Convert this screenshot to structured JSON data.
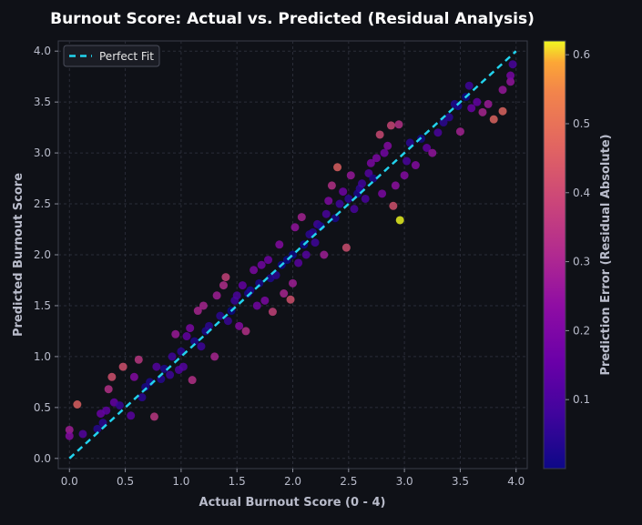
{
  "chart_data": {
    "type": "scatter",
    "title": "Burnout Score: Actual vs. Predicted (Residual Analysis)",
    "xlabel": "Actual Burnout Score (0 - 4)",
    "ylabel": "Predicted Burnout Score",
    "xlim": [
      -0.1,
      4.1
    ],
    "ylim": [
      -0.1,
      4.1
    ],
    "xticks": [
      0.0,
      0.5,
      1.0,
      1.5,
      2.0,
      2.5,
      3.0,
      3.5,
      4.0
    ],
    "yticks": [
      0.0,
      0.5,
      1.0,
      1.5,
      2.0,
      2.5,
      3.0,
      3.5,
      4.0
    ],
    "grid": true,
    "legend": {
      "position": "top-left",
      "entries": [
        "Perfect Fit"
      ]
    },
    "reference_line": {
      "label": "Perfect Fit",
      "x": [
        0,
        4
      ],
      "y": [
        0,
        4
      ],
      "style": "dashed",
      "color": "#22d3ee"
    },
    "colorbar": {
      "label": "Prediction Error (Residual Absolute)",
      "range": [
        0.0,
        0.62
      ],
      "ticks": [
        0.1,
        0.2,
        0.3,
        0.4,
        0.5,
        0.6
      ],
      "colormap": "plasma"
    },
    "points": [
      {
        "x": 0.0,
        "y": 0.28
      },
      {
        "x": 0.0,
        "y": 0.22
      },
      {
        "x": 0.07,
        "y": 0.53
      },
      {
        "x": 0.12,
        "y": 0.24
      },
      {
        "x": 0.25,
        "y": 0.29
      },
      {
        "x": 0.28,
        "y": 0.44
      },
      {
        "x": 0.3,
        "y": 0.35
      },
      {
        "x": 0.33,
        "y": 0.47
      },
      {
        "x": 0.35,
        "y": 0.68
      },
      {
        "x": 0.38,
        "y": 0.8
      },
      {
        "x": 0.4,
        "y": 0.55
      },
      {
        "x": 0.45,
        "y": 0.52
      },
      {
        "x": 0.48,
        "y": 0.9
      },
      {
        "x": 0.55,
        "y": 0.42
      },
      {
        "x": 0.58,
        "y": 0.8
      },
      {
        "x": 0.62,
        "y": 0.97
      },
      {
        "x": 0.65,
        "y": 0.6
      },
      {
        "x": 0.68,
        "y": 0.7
      },
      {
        "x": 0.72,
        "y": 0.75
      },
      {
        "x": 0.76,
        "y": 0.41
      },
      {
        "x": 0.78,
        "y": 0.9
      },
      {
        "x": 0.82,
        "y": 0.78
      },
      {
        "x": 0.85,
        "y": 0.88
      },
      {
        "x": 0.9,
        "y": 0.82
      },
      {
        "x": 0.92,
        "y": 1.0
      },
      {
        "x": 0.95,
        "y": 1.22
      },
      {
        "x": 0.98,
        "y": 0.87
      },
      {
        "x": 1.0,
        "y": 1.05
      },
      {
        "x": 1.02,
        "y": 0.9
      },
      {
        "x": 1.05,
        "y": 1.2
      },
      {
        "x": 1.08,
        "y": 1.28
      },
      {
        "x": 1.1,
        "y": 0.77
      },
      {
        "x": 1.12,
        "y": 1.15
      },
      {
        "x": 1.15,
        "y": 1.45
      },
      {
        "x": 1.18,
        "y": 1.1
      },
      {
        "x": 1.2,
        "y": 1.5
      },
      {
        "x": 1.22,
        "y": 1.25
      },
      {
        "x": 1.25,
        "y": 1.3
      },
      {
        "x": 1.3,
        "y": 1.0
      },
      {
        "x": 1.32,
        "y": 1.6
      },
      {
        "x": 1.35,
        "y": 1.4
      },
      {
        "x": 1.38,
        "y": 1.7
      },
      {
        "x": 1.4,
        "y": 1.78
      },
      {
        "x": 1.42,
        "y": 1.35
      },
      {
        "x": 1.45,
        "y": 1.45
      },
      {
        "x": 1.48,
        "y": 1.55
      },
      {
        "x": 1.5,
        "y": 1.6
      },
      {
        "x": 1.52,
        "y": 1.3
      },
      {
        "x": 1.55,
        "y": 1.7
      },
      {
        "x": 1.58,
        "y": 1.25
      },
      {
        "x": 1.6,
        "y": 1.62
      },
      {
        "x": 1.62,
        "y": 1.65
      },
      {
        "x": 1.65,
        "y": 1.85
      },
      {
        "x": 1.68,
        "y": 1.5
      },
      {
        "x": 1.7,
        "y": 1.72
      },
      {
        "x": 1.72,
        "y": 1.9
      },
      {
        "x": 1.75,
        "y": 1.55
      },
      {
        "x": 1.78,
        "y": 1.95
      },
      {
        "x": 1.8,
        "y": 1.77
      },
      {
        "x": 1.82,
        "y": 1.44
      },
      {
        "x": 1.85,
        "y": 1.8
      },
      {
        "x": 1.88,
        "y": 2.1
      },
      {
        "x": 1.9,
        "y": 1.9
      },
      {
        "x": 1.92,
        "y": 1.62
      },
      {
        "x": 1.95,
        "y": 1.95
      },
      {
        "x": 1.98,
        "y": 1.56
      },
      {
        "x": 2.0,
        "y": 2.0
      },
      {
        "x": 2.0,
        "y": 1.72
      },
      {
        "x": 2.02,
        "y": 2.27
      },
      {
        "x": 2.05,
        "y": 1.92
      },
      {
        "x": 2.08,
        "y": 2.37
      },
      {
        "x": 2.1,
        "y": 2.1
      },
      {
        "x": 2.12,
        "y": 2.0
      },
      {
        "x": 2.15,
        "y": 2.2
      },
      {
        "x": 2.18,
        "y": 2.22
      },
      {
        "x": 2.2,
        "y": 2.12
      },
      {
        "x": 2.22,
        "y": 2.3
      },
      {
        "x": 2.25,
        "y": 2.28
      },
      {
        "x": 2.28,
        "y": 2.0
      },
      {
        "x": 2.3,
        "y": 2.4
      },
      {
        "x": 2.32,
        "y": 2.53
      },
      {
        "x": 2.35,
        "y": 2.68
      },
      {
        "x": 2.38,
        "y": 2.36
      },
      {
        "x": 2.4,
        "y": 2.86
      },
      {
        "x": 2.42,
        "y": 2.5
      },
      {
        "x": 2.45,
        "y": 2.62
      },
      {
        "x": 2.48,
        "y": 2.07
      },
      {
        "x": 2.5,
        "y": 2.55
      },
      {
        "x": 2.52,
        "y": 2.78
      },
      {
        "x": 2.55,
        "y": 2.45
      },
      {
        "x": 2.58,
        "y": 2.6
      },
      {
        "x": 2.6,
        "y": 2.65
      },
      {
        "x": 2.62,
        "y": 2.7
      },
      {
        "x": 2.65,
        "y": 2.55
      },
      {
        "x": 2.68,
        "y": 2.8
      },
      {
        "x": 2.7,
        "y": 2.9
      },
      {
        "x": 2.72,
        "y": 2.75
      },
      {
        "x": 2.75,
        "y": 2.95
      },
      {
        "x": 2.78,
        "y": 3.18
      },
      {
        "x": 2.8,
        "y": 2.6
      },
      {
        "x": 2.82,
        "y": 3.0
      },
      {
        "x": 2.85,
        "y": 3.07
      },
      {
        "x": 2.88,
        "y": 3.27
      },
      {
        "x": 2.9,
        "y": 2.48
      },
      {
        "x": 2.92,
        "y": 2.68
      },
      {
        "x": 2.95,
        "y": 3.28
      },
      {
        "x": 2.96,
        "y": 2.34
      },
      {
        "x": 3.0,
        "y": 2.78
      },
      {
        "x": 3.02,
        "y": 2.92
      },
      {
        "x": 3.05,
        "y": 3.1
      },
      {
        "x": 3.1,
        "y": 2.88
      },
      {
        "x": 3.15,
        "y": 3.14
      },
      {
        "x": 3.2,
        "y": 3.05
      },
      {
        "x": 3.25,
        "y": 3.0
      },
      {
        "x": 3.3,
        "y": 3.2
      },
      {
        "x": 3.35,
        "y": 3.3
      },
      {
        "x": 3.4,
        "y": 3.35
      },
      {
        "x": 3.45,
        "y": 3.48
      },
      {
        "x": 3.48,
        "y": 3.46
      },
      {
        "x": 3.5,
        "y": 3.21
      },
      {
        "x": 3.55,
        "y": 3.55
      },
      {
        "x": 3.58,
        "y": 3.66
      },
      {
        "x": 3.6,
        "y": 3.44
      },
      {
        "x": 3.65,
        "y": 3.5
      },
      {
        "x": 3.7,
        "y": 3.4
      },
      {
        "x": 3.75,
        "y": 3.48
      },
      {
        "x": 3.8,
        "y": 3.33
      },
      {
        "x": 3.88,
        "y": 3.62
      },
      {
        "x": 3.88,
        "y": 3.41
      },
      {
        "x": 3.95,
        "y": 3.7
      },
      {
        "x": 3.95,
        "y": 3.76
      },
      {
        "x": 3.97,
        "y": 3.87
      }
    ]
  }
}
